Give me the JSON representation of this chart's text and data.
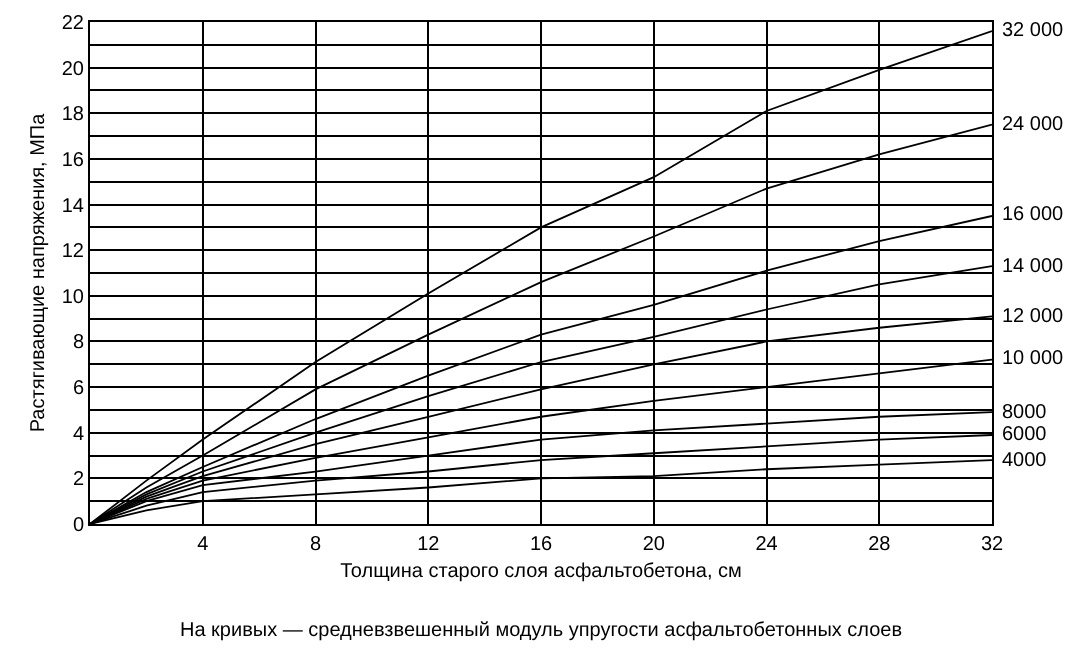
{
  "chart_data": {
    "type": "line",
    "xlabel": "Толщина старого слоя асфальтобетона, см",
    "ylabel": "Растягивающие напряжения, МПа",
    "annotations": [
      "На кривых — средневзвешенный модуль упругости асфальтобетонных слоев"
    ],
    "x": [
      0,
      2,
      4,
      8,
      12,
      16,
      20,
      24,
      28,
      32
    ],
    "series": [
      {
        "name": "32 000",
        "color": "#000000",
        "values": [
          0,
          1.9,
          3.7,
          7.1,
          10.1,
          13.0,
          15.2,
          18.1,
          19.9,
          21.6
        ]
      },
      {
        "name": "24 000",
        "color": "#000000",
        "values": [
          0,
          1.6,
          3.0,
          5.9,
          8.3,
          10.6,
          12.6,
          14.7,
          16.2,
          17.5
        ]
      },
      {
        "name": "16 000",
        "color": "#000000",
        "values": [
          0,
          1.4,
          2.5,
          4.6,
          6.5,
          8.3,
          9.6,
          11.1,
          12.4,
          13.5
        ]
      },
      {
        "name": "14 000",
        "color": "#000000",
        "values": [
          0,
          1.3,
          2.3,
          4.0,
          5.6,
          7.1,
          8.2,
          9.4,
          10.5,
          11.3
        ]
      },
      {
        "name": "12 000",
        "color": "#000000",
        "values": [
          0,
          1.2,
          2.1,
          3.5,
          4.7,
          5.9,
          7.0,
          8.0,
          8.6,
          9.1
        ]
      },
      {
        "name": "10 000",
        "color": "#000000",
        "values": [
          0,
          1.1,
          1.9,
          2.9,
          3.8,
          4.7,
          5.4,
          6.0,
          6.6,
          7.2
        ]
      },
      {
        "name": "8000",
        "color": "#000000",
        "values": [
          0,
          1.0,
          1.7,
          2.3,
          3.0,
          3.7,
          4.1,
          4.4,
          4.7,
          4.9
        ]
      },
      {
        "name": "6000",
        "color": "#000000",
        "values": [
          0,
          0.8,
          1.4,
          1.9,
          2.3,
          2.8,
          3.1,
          3.4,
          3.7,
          3.9
        ]
      },
      {
        "name": "4000",
        "color": "#000000",
        "values": [
          0,
          0.6,
          1.0,
          1.3,
          1.6,
          2.0,
          2.1,
          2.4,
          2.6,
          2.8
        ]
      }
    ],
    "xlim": [
      0,
      32
    ],
    "ylim": [
      0,
      22
    ],
    "xticks": [
      {
        "value": 0,
        "label": null
      },
      4,
      8,
      12,
      16,
      20,
      24,
      28,
      32
    ],
    "yticks": [
      0,
      {
        "value": 1,
        "label": null
      },
      2,
      {
        "value": 3,
        "label": null
      },
      4,
      {
        "value": 5,
        "label": null
      },
      6,
      {
        "value": 7,
        "label": null
      },
      8,
      {
        "value": 9,
        "label": null
      },
      10,
      {
        "value": 11,
        "label": null
      },
      12,
      {
        "value": 13,
        "label": null
      },
      14,
      {
        "value": 15,
        "label": null
      },
      16,
      {
        "value": 17,
        "label": null
      },
      18,
      {
        "value": 19,
        "label": null
      },
      20,
      {
        "value": 21,
        "label": null
      },
      22
    ],
    "grid": true,
    "legend": false,
    "marker": "none",
    "line_style": "solid"
  }
}
